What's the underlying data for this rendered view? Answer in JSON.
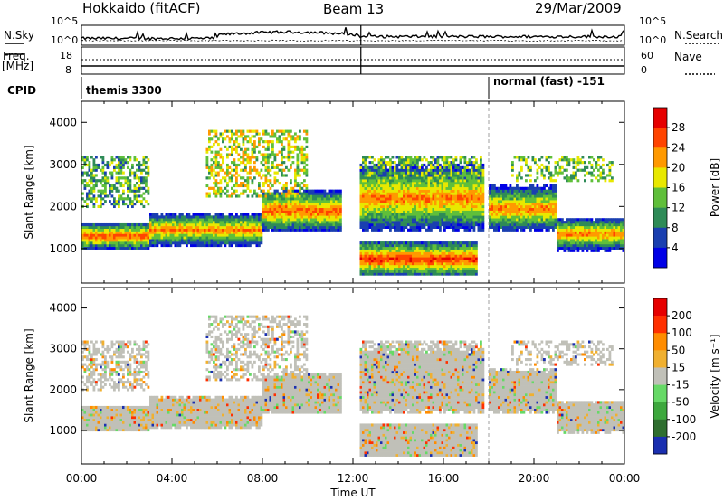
{
  "header": {
    "station": "Hokkaido (fitACF)",
    "beam": "Beam 13",
    "date": "29/Mar/2009"
  },
  "strip_labels": {
    "nsky": "N.Sky",
    "nsearch": "N.Search",
    "freq": "Freq.",
    "freq_unit": "[MHz]",
    "nave": "Nave",
    "cpid": "CPID",
    "ticks_noise_left": [
      "10^5",
      "10^0"
    ],
    "ticks_noise_right": [
      "10^5",
      "10^0"
    ],
    "ticks_freq_left": [
      "18",
      "8"
    ],
    "ticks_nave_right": [
      "60",
      "0"
    ]
  },
  "cpid_segments": [
    {
      "label": "themis 3300",
      "start_ut": "00:00"
    },
    {
      "label": "normal (fast) -151",
      "start_ut": "18:00"
    }
  ],
  "chart_data": [
    {
      "type": "heatmap",
      "title": "",
      "xlabel": "Time UT",
      "ylabel": "Slant Range [km]",
      "xlim": [
        "00:00",
        "24:00"
      ],
      "ylim": [
        180,
        4500
      ],
      "x_ticks": [
        "00:00",
        "04:00",
        "08:00",
        "12:00",
        "16:00",
        "20:00",
        "00:00"
      ],
      "y_ticks": [
        1000,
        2000,
        3000,
        4000
      ],
      "colorbar": {
        "label": "Power [dB]",
        "ticks": [
          4,
          8,
          12,
          16,
          20,
          24,
          28
        ],
        "colors": [
          "#0000e6",
          "#1a3fb0",
          "#2e8b57",
          "#5fbf3a",
          "#e8e800",
          "#ff9900",
          "#ff4400",
          "#e60000"
        ]
      },
      "bands": [
        {
          "t": [
            0,
            3
          ],
          "range": [
            1100,
            1500
          ],
          "level": 26
        },
        {
          "t": [
            3,
            8
          ],
          "range": [
            1200,
            1700
          ],
          "level": 24
        },
        {
          "t": [
            8,
            11.5
          ],
          "range": [
            1600,
            2200
          ],
          "level": 26
        },
        {
          "t": [
            12.3,
            17.8
          ],
          "range": [
            1700,
            2700
          ],
          "level": 24
        },
        {
          "t": [
            12.3,
            17.5
          ],
          "range": [
            500,
            1000
          ],
          "level": 28
        },
        {
          "t": [
            18,
            21
          ],
          "range": [
            1600,
            2300
          ],
          "level": 24
        },
        {
          "t": [
            21,
            24
          ],
          "range": [
            1100,
            1600
          ],
          "level": 24
        }
      ]
    },
    {
      "type": "heatmap",
      "title": "",
      "xlabel": "Time UT",
      "ylabel": "Slant Range [km]",
      "xlim": [
        "00:00",
        "24:00"
      ],
      "ylim": [
        180,
        4500
      ],
      "x_ticks": [
        "00:00",
        "04:00",
        "08:00",
        "12:00",
        "16:00",
        "20:00",
        "00:00"
      ],
      "y_ticks": [
        1000,
        2000,
        3000,
        4000
      ],
      "colorbar": {
        "label": "Velocity [m s^-1]",
        "ticks": [
          200,
          100,
          50,
          15,
          -15,
          -50,
          -100,
          -200
        ],
        "colors": [
          "#1a2fb0",
          "#2f6e2f",
          "#3da83d",
          "#66d966",
          "#c0c0b8",
          "#f0b030",
          "#ff8c00",
          "#ff3000",
          "#e60000"
        ]
      }
    }
  ]
}
